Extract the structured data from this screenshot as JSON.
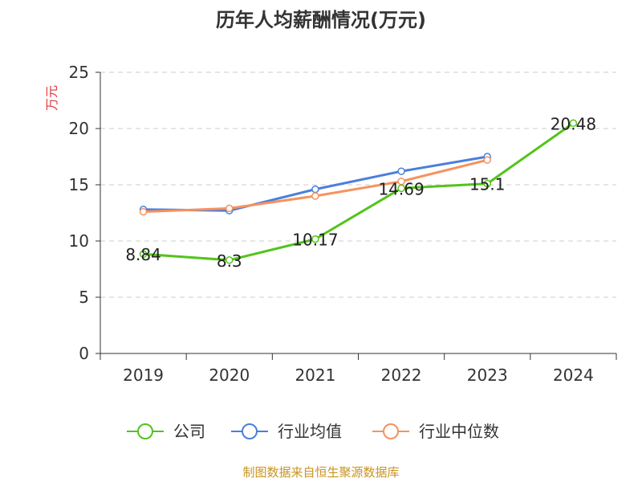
{
  "chart_data": {
    "type": "line",
    "title": "历年人均薪酬情况(万元)",
    "unit_label": "万元",
    "xlabel": "",
    "ylabel": "",
    "categories": [
      "2019",
      "2020",
      "2021",
      "2022",
      "2023",
      "2024"
    ],
    "y_ticks": [
      "0",
      "5",
      "10",
      "15",
      "20",
      "25"
    ],
    "ylim": [
      0,
      25
    ],
    "grid": true,
    "legend_position": "bottom",
    "series": [
      {
        "name": "公司",
        "color": "#52c41a",
        "values": [
          8.84,
          8.3,
          10.17,
          14.69,
          15.1,
          20.48
        ],
        "data_labels": [
          "8.84",
          "8.3",
          "10.17",
          "14.69",
          "15.1",
          "20.48"
        ]
      },
      {
        "name": "行业均值",
        "color": "#4a7fdc",
        "values": [
          12.8,
          12.7,
          14.6,
          16.2,
          17.5,
          null
        ]
      },
      {
        "name": "行业中位数",
        "color": "#f5925e",
        "values": [
          12.6,
          12.9,
          14.0,
          15.3,
          17.2,
          null
        ]
      }
    ],
    "source": "制图数据来自恒生聚源数据库"
  }
}
